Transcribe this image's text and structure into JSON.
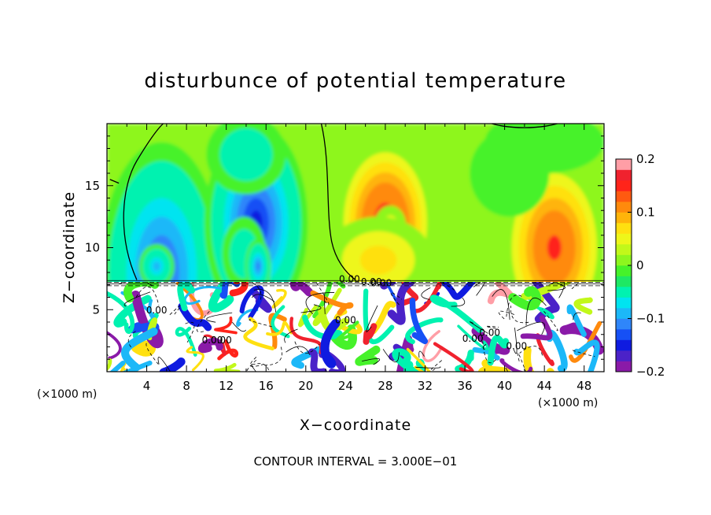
{
  "chart_data": {
    "type": "heatmap",
    "title": "disturbunce of potential temperature",
    "xlabel": "X−coordinate",
    "ylabel": "Z−coordinate",
    "x_unit_left": "(×1000 m)",
    "x_unit_right": "(×1000 m)",
    "xlim": [
      0,
      50
    ],
    "ylim": [
      0,
      20
    ],
    "x_ticks": [
      {
        "value": 4,
        "label": "4"
      },
      {
        "value": 8,
        "label": "8"
      },
      {
        "value": 12,
        "label": "12"
      },
      {
        "value": 16,
        "label": "16"
      },
      {
        "value": 20,
        "label": "20"
      },
      {
        "value": 24,
        "label": "24"
      },
      {
        "value": 28,
        "label": "28"
      },
      {
        "value": 32,
        "label": "32"
      },
      {
        "value": 36,
        "label": "36"
      },
      {
        "value": 40,
        "label": "40"
      },
      {
        "value": 44,
        "label": "44"
      },
      {
        "value": 48,
        "label": "48"
      }
    ],
    "y_ticks": [
      {
        "value": 5,
        "label": "5"
      },
      {
        "value": 10,
        "label": "10"
      },
      {
        "value": 15,
        "label": "15"
      }
    ],
    "colorbar": {
      "range": [
        -0.2,
        0.2
      ],
      "ticks": [
        {
          "value": 0.2,
          "label": "0.2"
        },
        {
          "value": 0.1,
          "label": "0.1"
        },
        {
          "value": 0,
          "label": "0"
        },
        {
          "value": -0.1,
          "label": "−0.1"
        },
        {
          "value": -0.2,
          "label": "−0.2"
        }
      ],
      "colors": [
        "#8a1aa8",
        "#4b22c8",
        "#0f1be0",
        "#1650f5",
        "#2f86fa",
        "#1cb8f8",
        "#00e4f0",
        "#00f2b0",
        "#1ee864",
        "#46f22a",
        "#8ef61e",
        "#c2f81a",
        "#eef61a",
        "#ffe010",
        "#ffb40a",
        "#ff8a0c",
        "#ff5a10",
        "#ff241a",
        "#f0222e",
        "#ff9ea6"
      ]
    },
    "contour_labels": [
      "0.00",
      "0.00",
      "0.00",
      "0.00",
      "0.00",
      "0.00",
      "0.00",
      "0.00",
      "0.00",
      "0.00"
    ],
    "upper_field_blobs": [
      {
        "x": 5.5,
        "z": 8.0,
        "rx": 6.2,
        "rz": 10.5,
        "v": -0.13
      },
      {
        "x": 15.0,
        "z": 12.0,
        "rx": 5.2,
        "rz": 8.0,
        "v": -0.15
      },
      {
        "x": 14.0,
        "z": 17.5,
        "rx": 4.0,
        "rz": 3.2,
        "v": -0.05
      },
      {
        "x": 13.8,
        "z": 9.5,
        "rx": 2.2,
        "rz": 3.0,
        "v": -0.06
      },
      {
        "x": 5.0,
        "z": 8.5,
        "rx": 1.8,
        "rz": 1.8,
        "v": -0.09
      },
      {
        "x": 15.2,
        "z": 8.5,
        "rx": 1.3,
        "rz": 2.2,
        "v": -0.12
      },
      {
        "x": 28.0,
        "z": 12.0,
        "rx": 4.8,
        "rz": 6.5,
        "v": 0.15
      },
      {
        "x": 28.5,
        "z": 11.8,
        "rx": 1.6,
        "rz": 1.6,
        "v": 0.03
      },
      {
        "x": 27.3,
        "z": 9.0,
        "rx": 5.5,
        "rz": 3.5,
        "v": 0.05
      },
      {
        "x": 45.0,
        "z": 10.0,
        "rx": 5.0,
        "rz": 7.0,
        "v": 0.14
      },
      {
        "x": 36.0,
        "z": 12.5,
        "rx": 3.5,
        "rz": 4.5,
        "v": 0.02
      },
      {
        "x": 40.5,
        "z": 16.0,
        "rx": 4.0,
        "rz": 3.5,
        "v": -0.02
      },
      {
        "x": 44.0,
        "z": 18.5,
        "rx": 6.0,
        "rz": 2.5,
        "v": -0.01
      }
    ],
    "footer": "CONTOUR INTERVAL = 3.000E−01"
  }
}
